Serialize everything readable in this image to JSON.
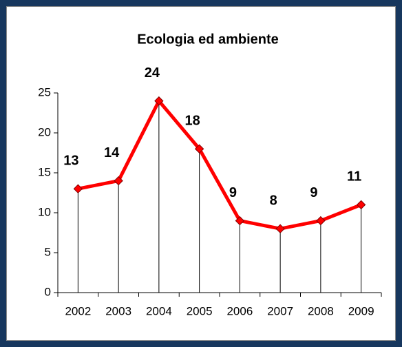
{
  "chart_data": {
    "type": "line",
    "title": "Ecologia ed ambiente",
    "categories": [
      "2002",
      "2003",
      "2004",
      "2005",
      "2006",
      "2007",
      "2008",
      "2009"
    ],
    "values": [
      13,
      14,
      24,
      18,
      9,
      8,
      9,
      11
    ],
    "color": "#ff0000",
    "ylim": [
      0,
      25
    ],
    "yticks": [
      0,
      5,
      10,
      15,
      20,
      25
    ],
    "grid": false
  }
}
